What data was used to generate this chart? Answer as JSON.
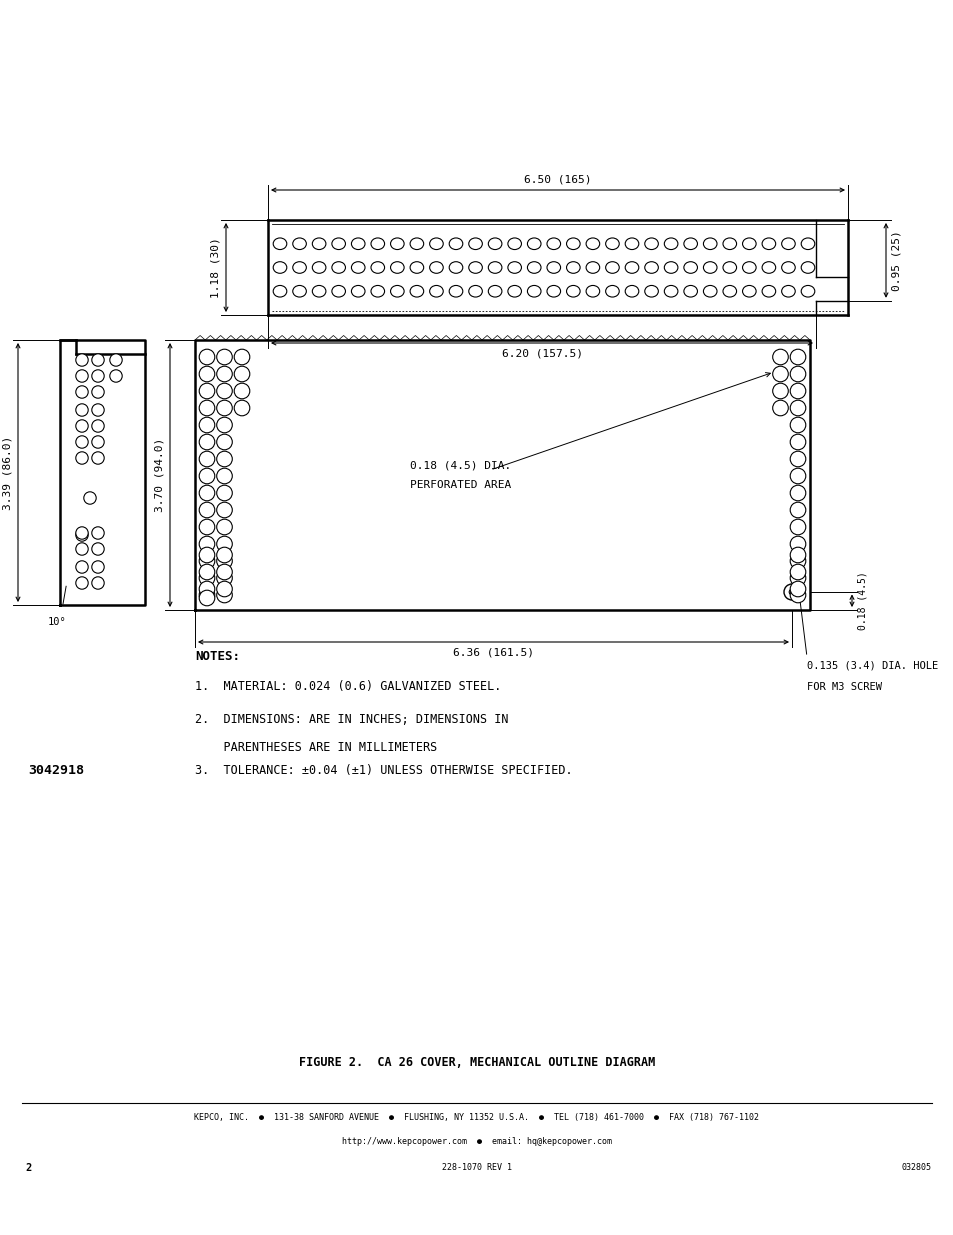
{
  "bg_color": "#ffffff",
  "line_color": "#000000",
  "title": "FIGURE 2.  CA 26 COVER, MECHANICAL OUTLINE DIAGRAM",
  "notes_header": "NOTES:",
  "note1": "1.  MATERIAL: 0.024 (0.6) GALVANIZED STEEL.",
  "note2a": "2.  DIMENSIONS: ARE IN INCHES; DIMENSIONS IN",
  "note2b": "    PARENTHESES ARE IN MILLIMETERS",
  "note3": "3.  TOLERANCE: ±0.04 (±1) UNLESS OTHERWISE SPECIFIED.",
  "part_number": "3042918",
  "footer_line1": "KEPCO, INC.  ●  131-38 SANFORD AVENUE  ●  FLUSHING, NY 11352 U.S.A.  ●  TEL (718) 461-7000  ●  FAX (718) 767-1102",
  "footer_line2": "http://www.kepcopower.com  ●  email: hq@kepcopower.com",
  "footer_line3": "228-1070 REV 1",
  "footer_page": "2",
  "footer_code": "032805",
  "dim_650": "6.50 (165)",
  "dim_620": "6.20 (157.5)",
  "dim_118": "1.18 (30)",
  "dim_095": "0.95 (25)",
  "dim_339": "3.39 (86.0)",
  "dim_370": "3.70 (94.0)",
  "dim_018_dia": "0.18 (4.5) DIA.",
  "dim_perforated": "PERFORATED AREA",
  "dim_018_side": "0.18 (4.5)",
  "dim_636": "6.36 (161.5)",
  "dim_hole_line1": "0.135 (3.4) DIA. HOLE",
  "dim_hole_line2": "FOR M3 SCREW",
  "dim_10deg": "10°"
}
